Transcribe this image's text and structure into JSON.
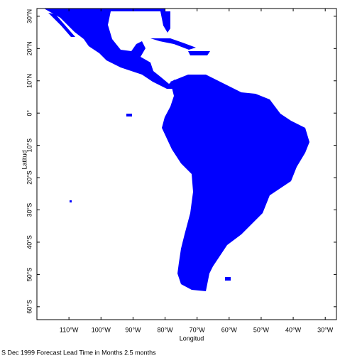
{
  "map": {
    "xlabel": "Longitud",
    "ylabel": "Latitud",
    "caption": "S Dec 1999 Forecast Lead Time in Months 2.5 months",
    "xlim": [
      -120,
      -26.5
    ],
    "ylim": [
      -64,
      32.4
    ],
    "xticks": [
      {
        "value": -110,
        "label": "110°W"
      },
      {
        "value": -100,
        "label": "100°W"
      },
      {
        "value": -90,
        "label": "90°W"
      },
      {
        "value": -80,
        "label": "80°W"
      },
      {
        "value": -70,
        "label": "70°W"
      },
      {
        "value": -60,
        "label": "60°W"
      },
      {
        "value": -50,
        "label": "50°W"
      },
      {
        "value": -40,
        "label": "40°W"
      },
      {
        "value": -30,
        "label": "30°W"
      }
    ],
    "yticks": [
      {
        "value": 30,
        "label": "30°N"
      },
      {
        "value": 20,
        "label": "20°N"
      },
      {
        "value": 10,
        "label": "10°N"
      },
      {
        "value": 0,
        "label": "0°"
      },
      {
        "value": -10,
        "label": "10°S"
      },
      {
        "value": -20,
        "label": "20°S"
      },
      {
        "value": -30,
        "label": "30°S"
      },
      {
        "value": -40,
        "label": "40°S"
      },
      {
        "value": -50,
        "label": "50°S"
      },
      {
        "value": -60,
        "label": "60°S"
      }
    ]
  }
}
